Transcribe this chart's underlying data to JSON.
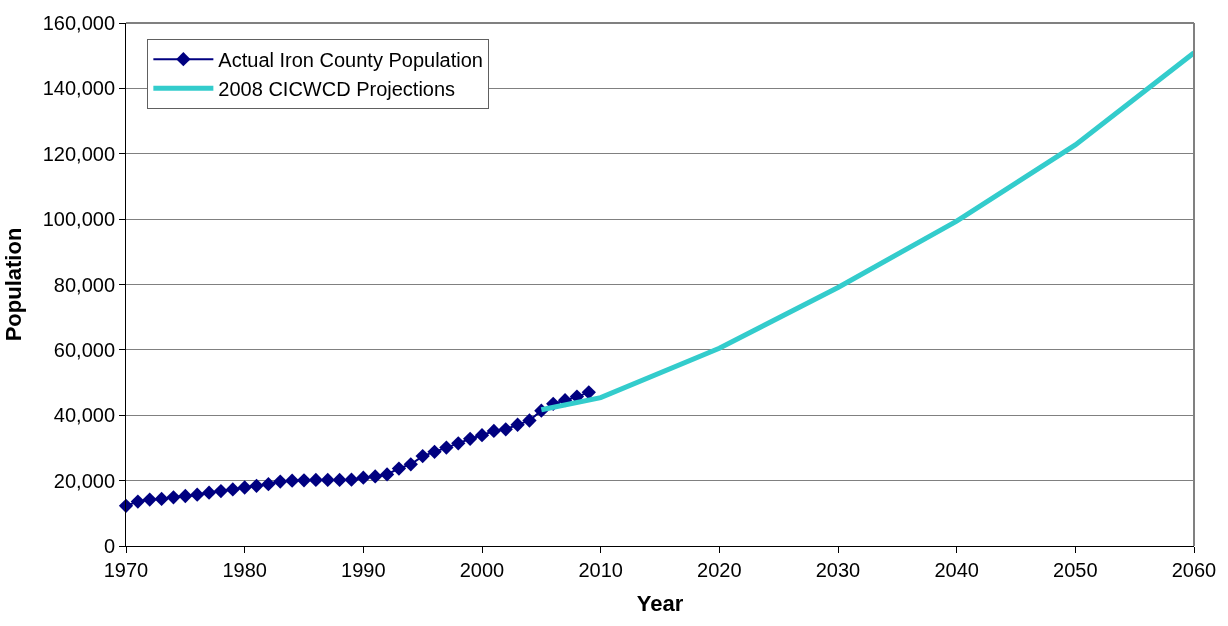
{
  "chart_data": {
    "type": "line",
    "xlabel": "Year",
    "ylabel": "Population",
    "xlim": [
      1970,
      2060
    ],
    "xticks": [
      1970,
      1980,
      1990,
      2000,
      2010,
      2020,
      2030,
      2040,
      2050,
      2060
    ],
    "ylim": [
      0,
      160000
    ],
    "yticks": [
      {
        "value": 0,
        "label": "0"
      },
      {
        "value": 20000,
        "label": "20,000"
      },
      {
        "value": 40000,
        "label": "40,000"
      },
      {
        "value": 60000,
        "label": "60,000"
      },
      {
        "value": 80000,
        "label": "80,000"
      },
      {
        "value": 100000,
        "label": "100,000"
      },
      {
        "value": 120000,
        "label": "120,000"
      },
      {
        "value": 140000,
        "label": "140,000"
      },
      {
        "value": 160000,
        "label": "160,000"
      }
    ],
    "grid": "y",
    "legend": "top left",
    "series": [
      {
        "name": "Actual Iron County Population",
        "color": "#000080",
        "marker": "diamond",
        "x": [
          1970,
          1971,
          1972,
          1973,
          1974,
          1975,
          1976,
          1977,
          1978,
          1979,
          1980,
          1981,
          1982,
          1983,
          1984,
          1985,
          1986,
          1987,
          1988,
          1989,
          1990,
          1991,
          1992,
          1993,
          1994,
          1995,
          1996,
          1997,
          1998,
          1999,
          2000,
          2001,
          2002,
          2003,
          2004,
          2005,
          2006,
          2007,
          2008,
          2009
        ],
        "values": [
          12300,
          13600,
          14200,
          14400,
          14900,
          15300,
          15700,
          16300,
          16800,
          17300,
          17900,
          18400,
          18900,
          19700,
          20000,
          20100,
          20200,
          20200,
          20200,
          20300,
          20900,
          21300,
          21900,
          23700,
          25000,
          27500,
          28800,
          30100,
          31400,
          32800,
          33900,
          35200,
          35700,
          37100,
          38400,
          41400,
          43500,
          44600,
          45700,
          47000
        ]
      },
      {
        "name": "2008 CICWCD Projections",
        "color": "#33cccc",
        "marker": "none",
        "x": [
          2005,
          2010,
          2020,
          2030,
          2040,
          2050,
          2060
        ],
        "values": [
          41700,
          45400,
          60500,
          79100,
          99400,
          122700,
          150900
        ]
      }
    ]
  }
}
